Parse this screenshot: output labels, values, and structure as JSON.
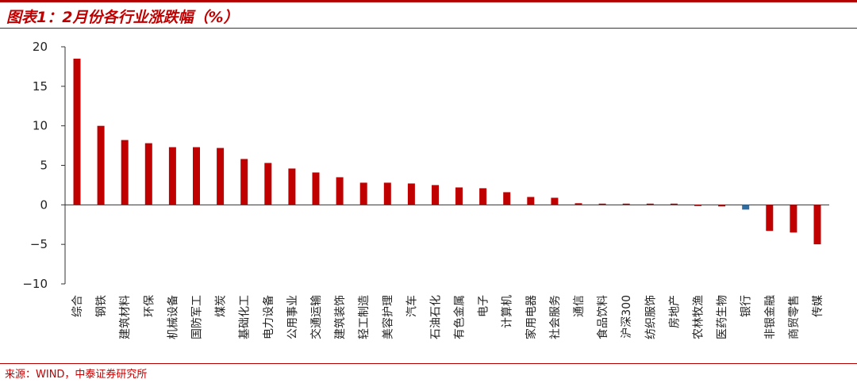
{
  "header": {
    "title": "图表1：2月份各行业涨跌幅（%）"
  },
  "footer": {
    "source": "来源：WIND，中泰证券研究所"
  },
  "colors": {
    "positive": "#c00000",
    "highlight": "#2e6ca4",
    "accent": "#b50000"
  },
  "chart_data": {
    "type": "bar",
    "title": "",
    "xlabel": "",
    "ylabel": "",
    "ylim": [
      -10,
      20
    ],
    "yticks": [
      20,
      15,
      10,
      5,
      0,
      -5,
      -10
    ],
    "grid": false,
    "categories": [
      "综合",
      "钢铁",
      "建筑材料",
      "环保",
      "机械设备",
      "国防军工",
      "煤炭",
      "基础化工",
      "电力设备",
      "公用事业",
      "交通运输",
      "建筑装饰",
      "轻工制造",
      "美容护理",
      "汽车",
      "石油石化",
      "有色金属",
      "电子",
      "计算机",
      "家用电器",
      "社会服务",
      "通信",
      "食品饮料",
      "沪深300",
      "纺织服饰",
      "房地产",
      "农林牧渔",
      "医药生物",
      "银行",
      "非银金融",
      "商贸零售",
      "传媒"
    ],
    "values": [
      18.5,
      10.0,
      8.2,
      7.8,
      7.3,
      7.3,
      7.2,
      5.8,
      5.3,
      4.6,
      4.1,
      3.5,
      2.8,
      2.8,
      2.7,
      2.5,
      2.2,
      2.1,
      1.6,
      1.0,
      0.9,
      0.2,
      0.1,
      0.05,
      0.0,
      0.0,
      -0.1,
      -0.2,
      -0.6,
      -3.3,
      -3.5,
      -5.0
    ],
    "highlight_index": 28
  }
}
